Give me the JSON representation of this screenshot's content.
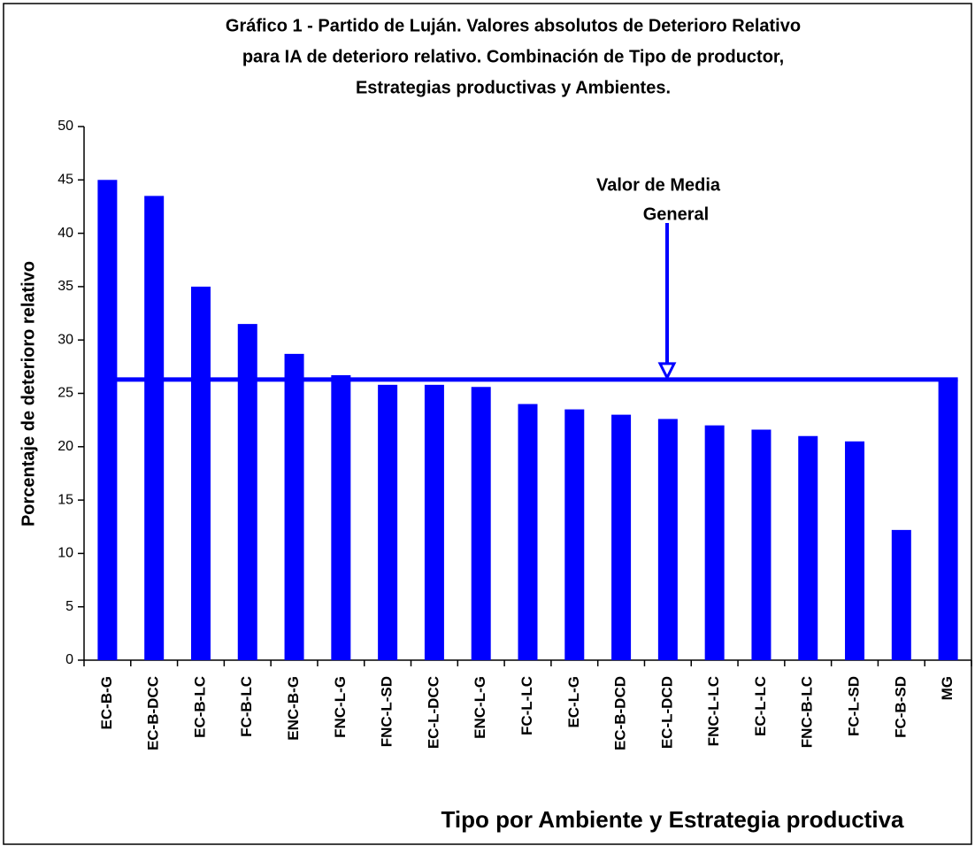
{
  "chart_data": {
    "type": "bar",
    "title": [
      "Gráfico 1 - Partido de Luján. Valores absolutos de Deterioro Relativo",
      "para IA de deterioro relativo. Combinación de Tipo de productor,",
      "Estrategias productivas y Ambientes."
    ],
    "x_label": "Tipo por Ambiente y Estrategia productiva",
    "y_label": "Porcentaje de deterioro relativo",
    "annotation": [
      "Valor de Media",
      "General"
    ],
    "categories": [
      "EC-B-G",
      "EC-B-DCC",
      "EC-B-LC",
      "FC-B-LC",
      "ENC-B-G",
      "FNC-L-G",
      "FNC-L-SD",
      "EC-L-DCC",
      "ENC-L-G",
      "FC-L-LC",
      "EC-L-G",
      "EC-B-DCD",
      "EC-L-DCD",
      "FNC-L-LC",
      "EC-L-LC",
      "FNC-B-LC",
      "FC-L-SD",
      "FC-B-SD",
      "MG"
    ],
    "values": [
      45,
      43.5,
      35,
      31.5,
      28.7,
      26.7,
      25.8,
      25.8,
      25.6,
      24,
      23.5,
      23,
      22.6,
      22,
      21.6,
      21,
      20.5,
      12.2,
      26.3
    ],
    "color": "#0000ff",
    "ylim": [
      0,
      50
    ],
    "yticks": [
      0,
      5,
      10,
      15,
      20,
      25,
      30,
      35,
      40,
      45,
      50
    ],
    "grid": false
  }
}
